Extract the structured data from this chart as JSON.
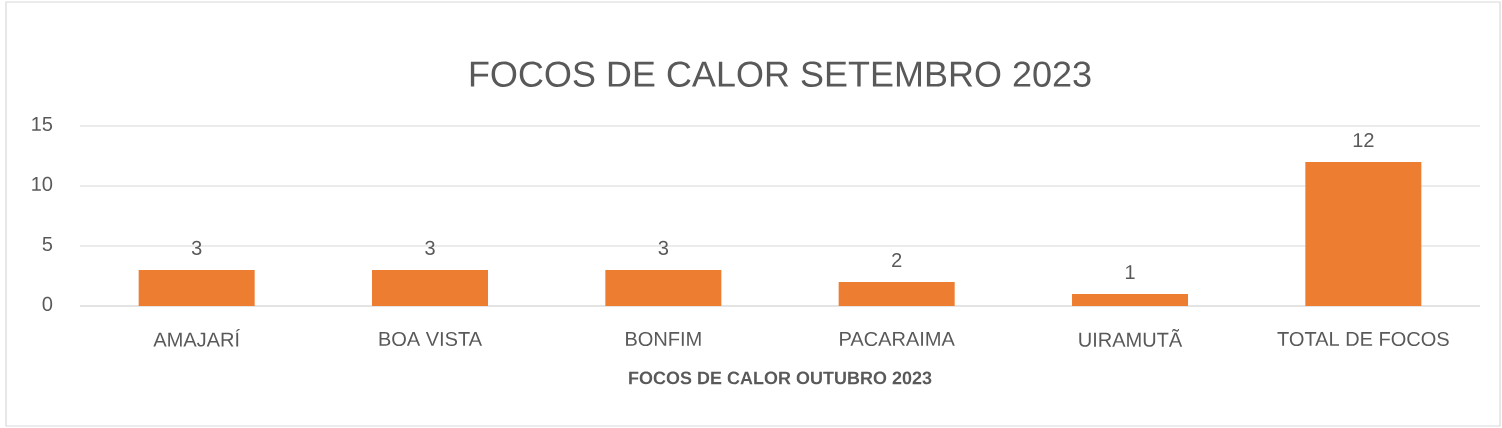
{
  "chart_data": {
    "type": "bar",
    "title": "FOCOS DE CALOR SETEMBRO 2023",
    "xlabel": "FOCOS DE CALOR OUTUBRO 2023",
    "categories": [
      "AMAJARÍ",
      "BOA VISTA",
      "BONFIM",
      "PACARAIMA",
      "UIRAMUTÃ",
      "TOTAL DE FOCOS"
    ],
    "values": [
      3,
      3,
      3,
      2,
      1,
      12
    ],
    "color": "#ed7d31",
    "ylim": [
      0,
      15
    ],
    "yticks": [
      0,
      5,
      10,
      15
    ],
    "grid": "y",
    "data_labels": true
  }
}
